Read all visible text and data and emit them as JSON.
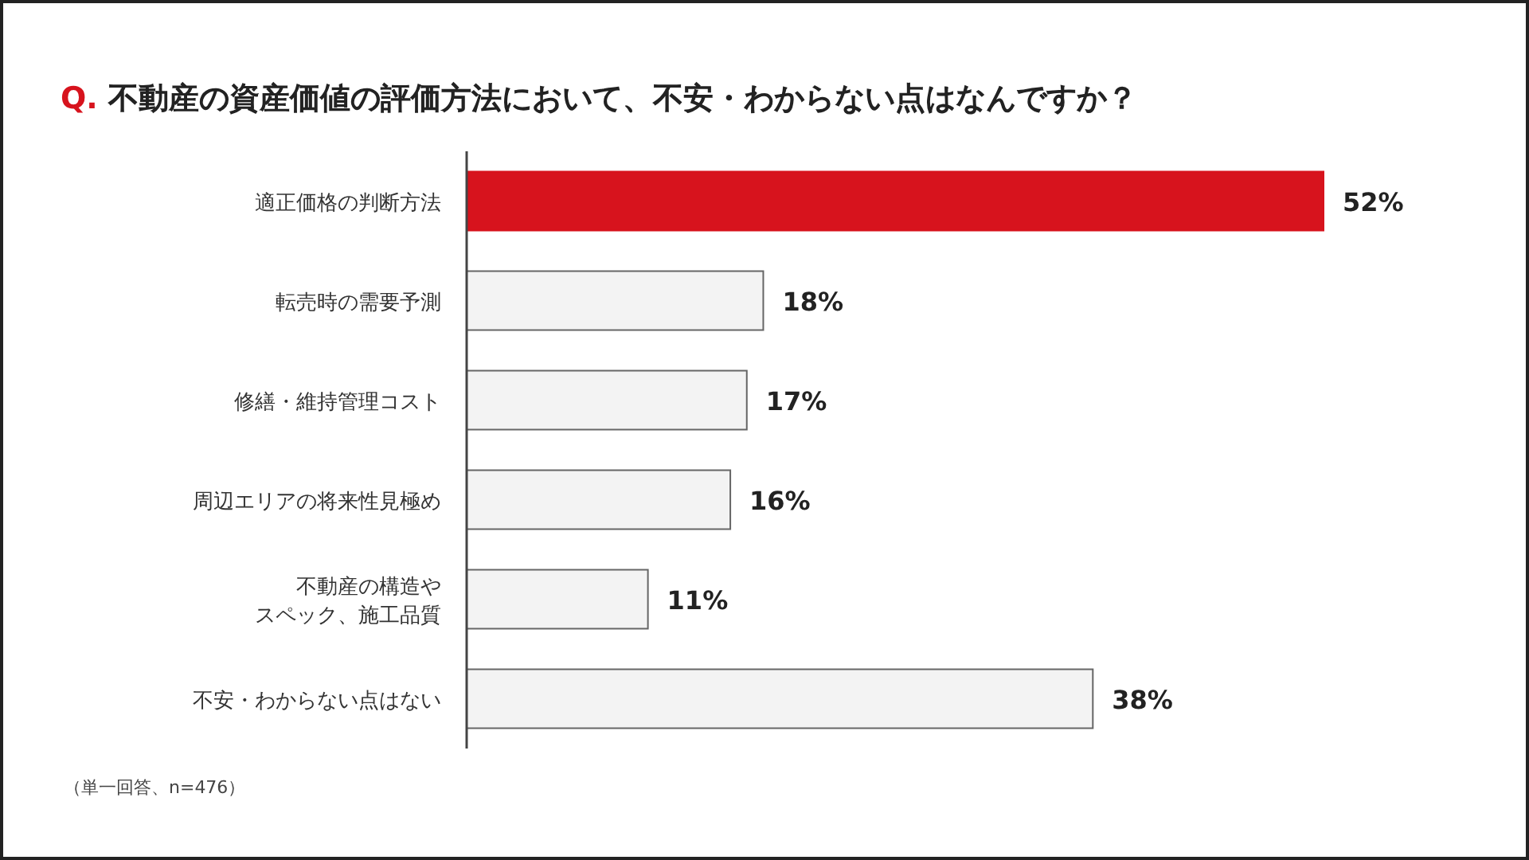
{
  "chart_data": {
    "type": "bar",
    "orientation": "horizontal",
    "title": "Q. 不動産の資産価値の評価方法において、不安・わからない点はなんですか？",
    "categories": [
      "適正価格の判断方法",
      "転売時の需要予測",
      "修繕・維持管理コスト",
      "周辺エリアの将来性見極め",
      "不動産の構造やスペック、施工品質",
      "不安・わからない点はない"
    ],
    "values": [
      52,
      18,
      17,
      16,
      11,
      38
    ],
    "value_labels": [
      "52%",
      "18%",
      "17%",
      "16%",
      "11%",
      "38%"
    ],
    "colors": [
      "#d7131d",
      "#f3f3f3",
      "#f3f3f3",
      "#f3f3f3",
      "#f3f3f3",
      "#f3f3f3"
    ],
    "annotations": [
      "（単一回答、n=476）"
    ]
  }
}
